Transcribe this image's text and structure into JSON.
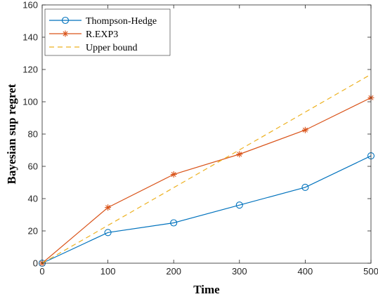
{
  "chart_data": {
    "type": "line",
    "title": "",
    "xlabel": "Time",
    "ylabel": "Bayesian sup regret",
    "xlim": [
      0,
      500
    ],
    "ylim": [
      0,
      160
    ],
    "x_ticks": [
      0,
      100,
      200,
      300,
      400,
      500
    ],
    "y_ticks": [
      0,
      20,
      40,
      60,
      80,
      100,
      120,
      140,
      160
    ],
    "grid": false,
    "legend_position": "top-left",
    "series": [
      {
        "name": "Thompson-Hedge",
        "color": "#0072BD",
        "marker": "circle",
        "line_style": "solid",
        "x": [
          0,
          100,
          200,
          300,
          400,
          500
        ],
        "y": [
          0,
          19,
          25,
          36,
          47,
          66.5
        ]
      },
      {
        "name": "R.EXP3",
        "color": "#D95319",
        "marker": "asterisk",
        "line_style": "solid",
        "x": [
          0,
          100,
          200,
          300,
          400,
          500
        ],
        "y": [
          0,
          34.5,
          55,
          67.5,
          82.5,
          102.5
        ]
      },
      {
        "name": "Upper bound",
        "color": "#EDB120",
        "marker": "none",
        "line_style": "dashed",
        "x": [
          0,
          100,
          200,
          300,
          400,
          500
        ],
        "y": [
          0,
          23.4,
          46.8,
          70.2,
          93.6,
          117
        ]
      }
    ]
  }
}
